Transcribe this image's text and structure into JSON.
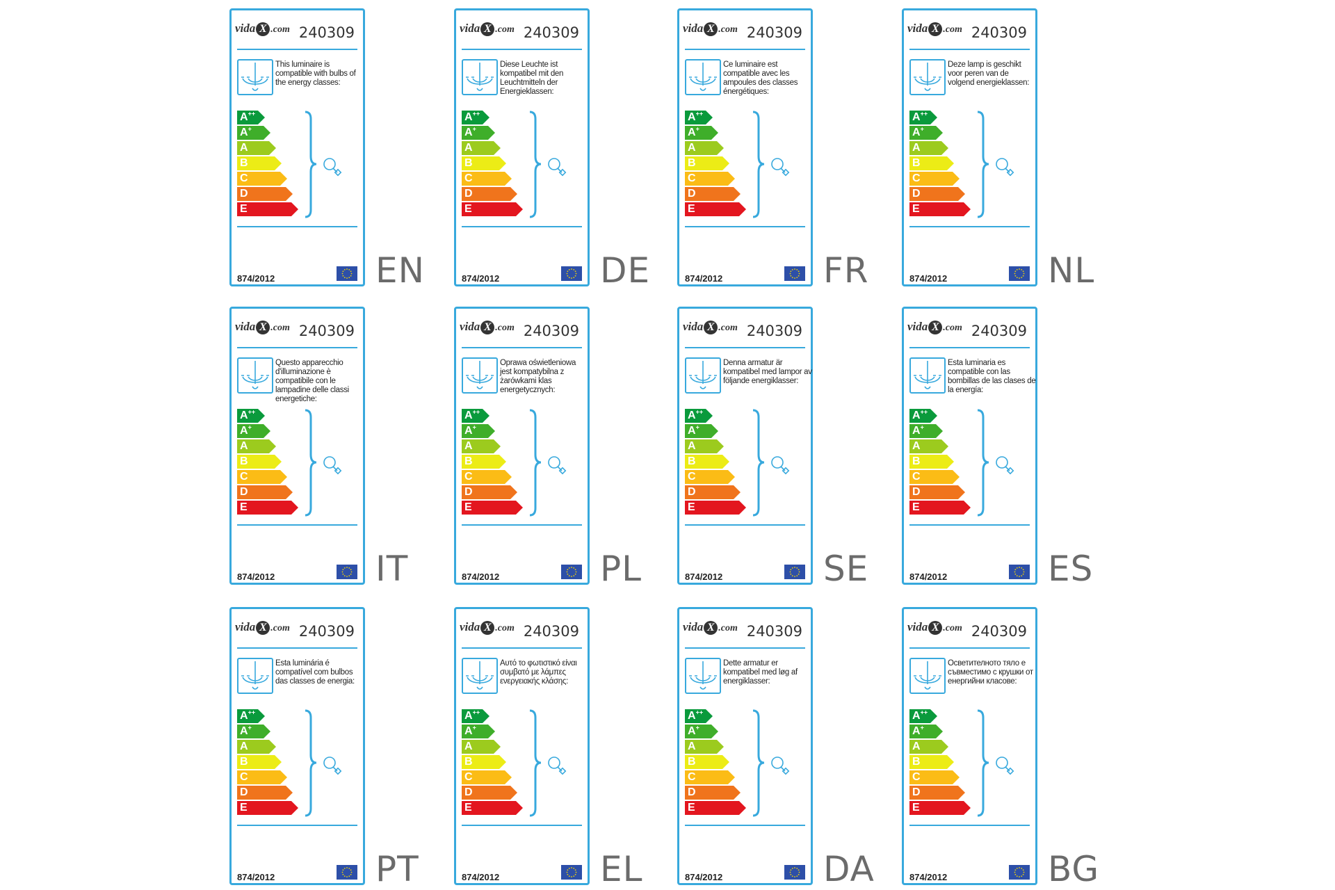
{
  "brand": {
    "name": "vida",
    "x": "X",
    "domain": ".com"
  },
  "cards": [
    {
      "lang": "EN",
      "model": "240309",
      "regulation": "874/2012",
      "text": "This luminaire is compatible with bulbs of the energy classes:"
    },
    {
      "lang": "DE",
      "model": "240309",
      "regulation": "874/2012",
      "text": "Diese Leuchte ist kompatibel mit den Leuchtmitteln der Energieklassen:"
    },
    {
      "lang": "FR",
      "model": "240309",
      "regulation": "874/2012",
      "text": "Ce luminaire est compatible avec les ampoules des classes énergétiques:"
    },
    {
      "lang": "NL",
      "model": "240309",
      "regulation": "874/2012",
      "text": "Deze lamp is geschikt voor peren van de volgend energieklassen:"
    },
    {
      "lang": "IT",
      "model": "240309",
      "regulation": "874/2012",
      "text": "Questo apparecchio d'illuminazione è compatibile con le lampadine delle classi energetiche:"
    },
    {
      "lang": "PL",
      "model": "240309",
      "regulation": "874/2012",
      "text": "Oprawa oświetleniowa jest kompatybilna z żarówkami klas energetycznych:"
    },
    {
      "lang": "SE",
      "model": "240309",
      "regulation": "874/2012",
      "text": "Denna armatur är kompatibel med lampor av följande energiklasser:"
    },
    {
      "lang": "ES",
      "model": "240309",
      "regulation": "874/2012",
      "text": "Esta luminaria es compatible con las bombillas de las clases de la energía:"
    },
    {
      "lang": "PT",
      "model": "240309",
      "regulation": "874/2012",
      "text": "Esta luminária é compatível com bulbos das classes de energia:"
    },
    {
      "lang": "EL",
      "model": "240309",
      "regulation": "874/2012",
      "text": "Αυτό το φωτιστικό είναι συμβατό με λάμπες ενεργειακής κλάσης:"
    },
    {
      "lang": "DA",
      "model": "240309",
      "regulation": "874/2012",
      "text": "Dette armatur er kompatibel med løg af energiklasser:"
    },
    {
      "lang": "BG",
      "model": "240309",
      "regulation": "874/2012",
      "text": "Осветителното тяло е съвместимо с крушки от енергийни класове:"
    }
  ],
  "energy_classes": [
    {
      "label": "A",
      "sup": "++",
      "color": "#0a9a3c"
    },
    {
      "label": "A",
      "sup": "+",
      "color": "#3fae2a"
    },
    {
      "label": "A",
      "sup": "",
      "color": "#9ccb1e"
    },
    {
      "label": "B",
      "sup": "",
      "color": "#ecec16"
    },
    {
      "label": "C",
      "sup": "",
      "color": "#fbbc16"
    },
    {
      "label": "D",
      "sup": "",
      "color": "#f0741c"
    },
    {
      "label": "E",
      "sup": "",
      "color": "#e3161f"
    }
  ],
  "colors": {
    "accent": "#38a9dd",
    "eu_blue": "#2d4fa8",
    "eu_stars": "#f5d400"
  },
  "icons": [
    "chandelier-icon",
    "brace-icon",
    "bulb-icon",
    "eu-flag-icon"
  ]
}
